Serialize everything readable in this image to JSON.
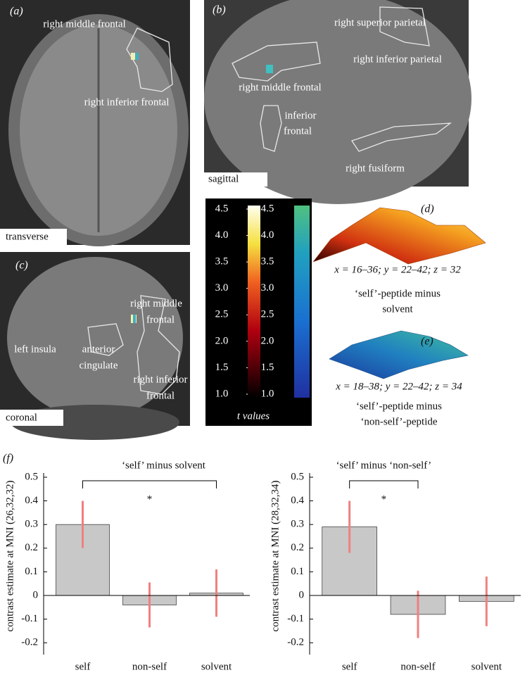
{
  "panels": {
    "a": {
      "label": "(a)",
      "view": "transverse",
      "regions": [
        "right middle frontal",
        "right inferior frontal"
      ]
    },
    "b": {
      "label": "(b)",
      "view": "sagittal",
      "regions": [
        "right superior parietal",
        "right inferior parietal",
        "right middle frontal",
        "inferior",
        "frontal",
        "right fusiform"
      ]
    },
    "c": {
      "label": "(c)",
      "view": "coronal",
      "regions": [
        "right middle",
        "frontal",
        "left insula",
        "anterior",
        "cingulate",
        "right inferior",
        "frontal"
      ]
    },
    "d": {
      "label": "(d)",
      "coords": "x = 16–36; y = 22–42; z = 32",
      "caption": [
        "‘self’-peptide minus",
        "solvent"
      ]
    },
    "e": {
      "label": "(e)",
      "coords": "x = 18–38; y = 22–42; z = 34",
      "caption": [
        "‘self’-peptide minus",
        "‘non-self’-peptide"
      ]
    },
    "f": {
      "label": "(f)"
    }
  },
  "colorbar": {
    "label": "t values",
    "ticks": [
      4.5,
      {
        "value": 4.0,
        "label": "4.0"
      },
      3.5,
      {
        "value": 3.0,
        "label": "3.0"
      },
      2.5,
      {
        "value": 2.0,
        "label": "2.0"
      },
      1.5,
      {
        "value": 1.0,
        "label": "1.0"
      }
    ]
  },
  "chart_data": [
    {
      "type": "bar",
      "title": "‘self’ minus solvent",
      "y_label": "contrast estimate at MNI (26,32,32)",
      "categories": [
        "self",
        "non-self",
        "solvent"
      ],
      "values": [
        0.3,
        -0.04,
        0.01
      ],
      "errors": [
        0.1,
        0.095,
        0.1
      ],
      "color": "#c8c8c8",
      "error_color": "#f08080",
      "ylim": [
        -0.25,
        0.5
      ],
      "yticks": [
        0.5,
        0.4,
        0.3,
        0.2,
        0.1,
        0,
        -0.1,
        -0.2
      ],
      "annotation": "*"
    },
    {
      "type": "bar",
      "title": "‘self’ minus ‘non-self’",
      "y_label": "contrast estimate at MNI (28,32,34)",
      "categories": [
        "self",
        "non-self",
        "solvent"
      ],
      "values": [
        0.29,
        -0.08,
        -0.025
      ],
      "errors": [
        0.11,
        0.1,
        0.105
      ],
      "color": "#c8c8c8",
      "error_color": "#f08080",
      "ylim": [
        -0.25,
        0.5
      ],
      "yticks": [
        0.5,
        0.4,
        0.3,
        0.2,
        0.1,
        0,
        -0.1,
        -0.2
      ],
      "annotation": "*"
    }
  ]
}
